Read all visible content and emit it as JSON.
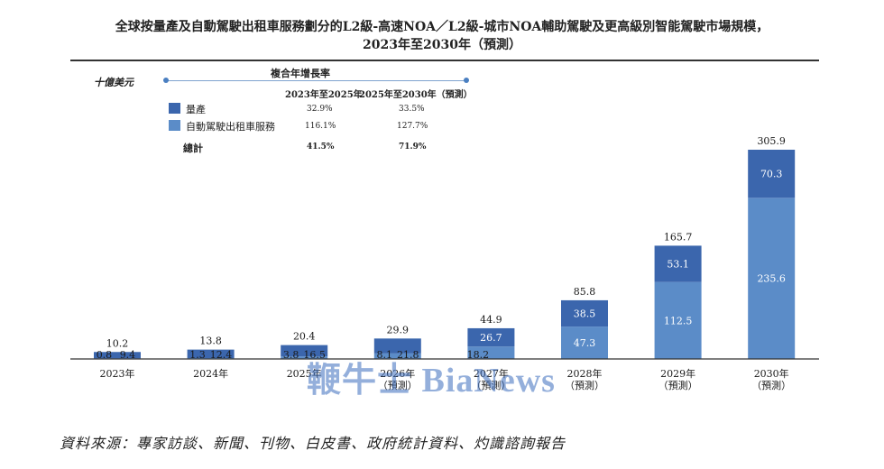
{
  "title_line1": "全球按量產及自動駕駛出租車服務劃分的L2級-高速NOA／L2級-城市NOA輔助駕駛及更高級別智能駕駛市場規模，",
  "title_line2": "2023年至2030年（預測）",
  "unit": "十億美元",
  "cagr": {
    "title": "複合年增長率",
    "col1": "2023年至2025年",
    "col2": "2025年至2030年（預測）",
    "rows": [
      {
        "label": "量產",
        "v1": "32.9%",
        "v2": "33.5%"
      },
      {
        "label": "自動駕駛出租車服務",
        "v1": "116.1%",
        "v2": "127.7%"
      }
    ],
    "total": {
      "label": "總計",
      "v1": "41.5%",
      "v2": "71.9%"
    }
  },
  "colors": {
    "mass_production": "#3b66ad",
    "robotaxi": "#5b8cc8",
    "axis": "#333333"
  },
  "chart_data": {
    "type": "bar",
    "stacked": true,
    "categories": [
      [
        "2023年"
      ],
      [
        "2024年"
      ],
      [
        "2025年"
      ],
      [
        "2026年",
        "（預測）"
      ],
      [
        "2027年",
        "（預測）"
      ],
      [
        "2028年",
        "（預測）"
      ],
      [
        "2029年",
        "（預測）"
      ],
      [
        "2030年",
        "（預測）"
      ]
    ],
    "series": [
      {
        "name": "自動駕駛出租車服務",
        "values": [
          0.8,
          1.3,
          3.8,
          8.1,
          18.2,
          47.3,
          112.5,
          235.6
        ]
      },
      {
        "name": "量產",
        "values": [
          9.4,
          12.4,
          16.5,
          21.8,
          26.7,
          38.5,
          53.1,
          70.3
        ]
      }
    ],
    "totals": [
      "10.2",
      "13.8",
      "20.4",
      "29.9",
      "44.9",
      "85.8",
      "165.7",
      "305.9"
    ],
    "ylim": [
      0,
      305.9
    ]
  },
  "source": "資料來源：專家訪談、新聞、刊物、白皮書、政府統計資料、灼識諮詢報告",
  "watermark": "鞭牛士 BiaNews"
}
